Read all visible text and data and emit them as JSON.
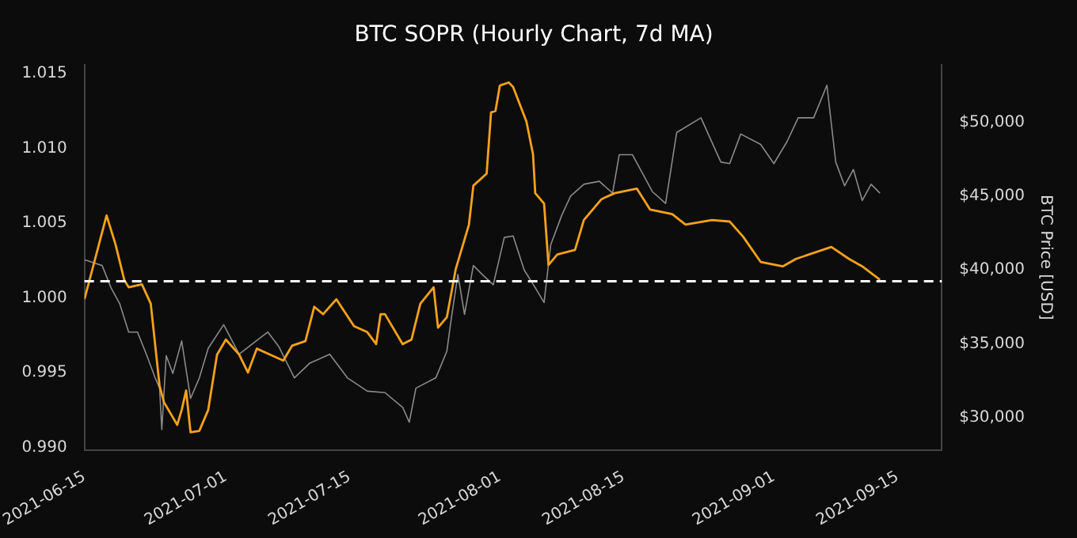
{
  "chart_data": {
    "type": "line",
    "title": "BTC SOPR (Hourly Chart, 7d MA)",
    "y2label": "BTC Price [USD]",
    "xlim": [
      "2021-06-15",
      "2021-09-20"
    ],
    "xticks": [
      "2021-06-15",
      "2021-07-01",
      "2021-07-15",
      "2021-08-01",
      "2021-08-15",
      "2021-09-01",
      "2021-09-15"
    ],
    "ylim": [
      0.9898,
      1.0156
    ],
    "yticks": [
      {
        "value": 0.99,
        "label": "0.990"
      },
      {
        "value": 0.995,
        "label": "0.995"
      },
      {
        "value": 1.0,
        "label": "1.000"
      },
      {
        "value": 1.005,
        "label": "1.005"
      },
      {
        "value": 1.01,
        "label": "1.010"
      },
      {
        "value": 1.015,
        "label": "1.015"
      }
    ],
    "y2lim": [
      27800,
      53900
    ],
    "y2ticks": [
      {
        "value": 30000,
        "label": "$30,000"
      },
      {
        "value": 35000,
        "label": "$35,000"
      },
      {
        "value": 40000,
        "label": "$40,000"
      },
      {
        "value": 45000,
        "label": "$45,000"
      },
      {
        "value": 50000,
        "label": "$50,000"
      }
    ],
    "grid": false,
    "legend": false,
    "marker": "none",
    "line_style": "solid",
    "ref_lines": [
      {
        "axis": "y",
        "value": 1.0011,
        "color": "#ffffff",
        "line_style": "dashed"
      }
    ],
    "series": [
      {
        "color": "#f7a21b",
        "axis": "y",
        "x": [
          "2021-06-15",
          "2021-06-17T12:00",
          "2021-06-18T12:00",
          "2021-06-19T12:00",
          "2021-06-20",
          "2021-06-21T12:00",
          "2021-06-22T12:00",
          "2021-06-23T12:00",
          "2021-06-24",
          "2021-06-25T12:00",
          "2021-06-26",
          "2021-06-26T12:00",
          "2021-06-27",
          "2021-06-28",
          "2021-06-29",
          "2021-06-30",
          "2021-07-01",
          "2021-07-02T12:00",
          "2021-07-03T12:00",
          "2021-07-04T12:00",
          "2021-07-06",
          "2021-07-07T12:00",
          "2021-07-08T12:00",
          "2021-07-10",
          "2021-07-11",
          "2021-07-12",
          "2021-07-13T12:00",
          "2021-07-15T12:00",
          "2021-07-17",
          "2021-07-18",
          "2021-07-18T12:00",
          "2021-07-19",
          "2021-07-21",
          "2021-07-22",
          "2021-07-23",
          "2021-07-24T12:00",
          "2021-07-25",
          "2021-07-26",
          "2021-07-27",
          "2021-07-28T12:00",
          "2021-07-29",
          "2021-07-30T12:00",
          "2021-07-31",
          "2021-07-31T12:00",
          "2021-08-01",
          "2021-08-02",
          "2021-08-02T12:00",
          "2021-08-04",
          "2021-08-04T18:00",
          "2021-08-05",
          "2021-08-06",
          "2021-08-06T12:00",
          "2021-08-07T12:00",
          "2021-08-09T12:00",
          "2021-08-10T12:00",
          "2021-08-12T12:00",
          "2021-08-14",
          "2021-08-16T12:00",
          "2021-08-18",
          "2021-08-20T12:00",
          "2021-08-22",
          "2021-08-25",
          "2021-08-27",
          "2021-08-28T12:00",
          "2021-08-30T12:00",
          "2021-09-02",
          "2021-09-03T12:00",
          "2021-09-07T12:00",
          "2021-09-09T12:00",
          "2021-09-11",
          "2021-09-13"
        ],
        "values": [
          0.9999,
          1.0055,
          1.0036,
          1.0012,
          1.0007,
          1.0009,
          0.9996,
          0.9941,
          0.993,
          0.9915,
          0.9925,
          0.9938,
          0.991,
          0.9911,
          0.9925,
          0.9962,
          0.9972,
          0.9962,
          0.995,
          0.9966,
          0.9962,
          0.9958,
          0.9968,
          0.9971,
          0.9994,
          0.9989,
          0.9999,
          0.9981,
          0.9977,
          0.9969,
          0.9989,
          0.9989,
          0.9969,
          0.9972,
          0.9996,
          1.0007,
          0.998,
          0.9987,
          1.0019,
          1.0049,
          1.0075,
          1.0083,
          1.0124,
          1.0125,
          1.0142,
          1.0144,
          1.0141,
          1.0118,
          1.0096,
          1.007,
          1.0063,
          1.0022,
          1.0029,
          1.0032,
          1.0052,
          1.0066,
          1.007,
          1.0073,
          1.0059,
          1.0056,
          1.0049,
          1.0052,
          1.0051,
          1.0041,
          1.0024,
          1.0021,
          1.0026,
          1.0034,
          1.0026,
          1.0021,
          1.0012
        ]
      },
      {
        "color": "#8a8a8a",
        "axis": "y2",
        "x": [
          "2021-06-15",
          "2021-06-16",
          "2021-06-17",
          "2021-06-18",
          "2021-06-19",
          "2021-06-20",
          "2021-06-21",
          "2021-06-22",
          "2021-06-23",
          "2021-06-23T12:00",
          "2021-06-23T18:00",
          "2021-06-24T06:00",
          "2021-06-25",
          "2021-06-26",
          "2021-06-27",
          "2021-06-28",
          "2021-06-29",
          "2021-06-30T18:00",
          "2021-07-02T12:00",
          "2021-07-04",
          "2021-07-05T18:00",
          "2021-07-07",
          "2021-07-08T18:00",
          "2021-07-10T12:00",
          "2021-07-12T18:00",
          "2021-07-14T18:00",
          "2021-07-17",
          "2021-07-19",
          "2021-07-21",
          "2021-07-21T18:00",
          "2021-07-22T12:00",
          "2021-07-24T18:00",
          "2021-07-26",
          "2021-07-26T12:00",
          "2021-07-27T06:00",
          "2021-07-28",
          "2021-07-29",
          "2021-07-30",
          "2021-07-31T06:00",
          "2021-08-01T12:00",
          "2021-08-02T12:00",
          "2021-08-03T18:00",
          "2021-08-05",
          "2021-08-06",
          "2021-08-06T18:00",
          "2021-08-08",
          "2021-08-09",
          "2021-08-10T12:00",
          "2021-08-12T06:00",
          "2021-08-13T18:00",
          "2021-08-14T12:00",
          "2021-08-16",
          "2021-08-18T06:00",
          "2021-08-19T18:00",
          "2021-08-21",
          "2021-08-23T18:00",
          "2021-08-26",
          "2021-08-27",
          "2021-08-28T06:00",
          "2021-08-30T12:00",
          "2021-09-01",
          "2021-09-02T12:00",
          "2021-09-03T18:00",
          "2021-09-05T12:00",
          "2021-09-07",
          "2021-09-08",
          "2021-09-09",
          "2021-09-10",
          "2021-09-11",
          "2021-09-12",
          "2021-09-13"
        ],
        "values": [
          40700,
          40500,
          40300,
          38800,
          37700,
          35800,
          35800,
          34300,
          32700,
          32000,
          29200,
          34200,
          33000,
          35200,
          31300,
          32700,
          34700,
          36300,
          34300,
          35000,
          35800,
          34800,
          32700,
          33700,
          34300,
          32700,
          31800,
          31700,
          30700,
          29700,
          32000,
          32700,
          34500,
          36700,
          39700,
          37000,
          40300,
          39700,
          39000,
          42200,
          42300,
          40000,
          38800,
          37800,
          41700,
          43700,
          45000,
          45800,
          46000,
          45200,
          47800,
          47800,
          45300,
          44500,
          49300,
          50300,
          47300,
          47200,
          49200,
          48500,
          47200,
          48700,
          50300,
          50300,
          52500,
          47300,
          45700,
          46800,
          44700,
          45800,
          45200
        ]
      }
    ]
  }
}
